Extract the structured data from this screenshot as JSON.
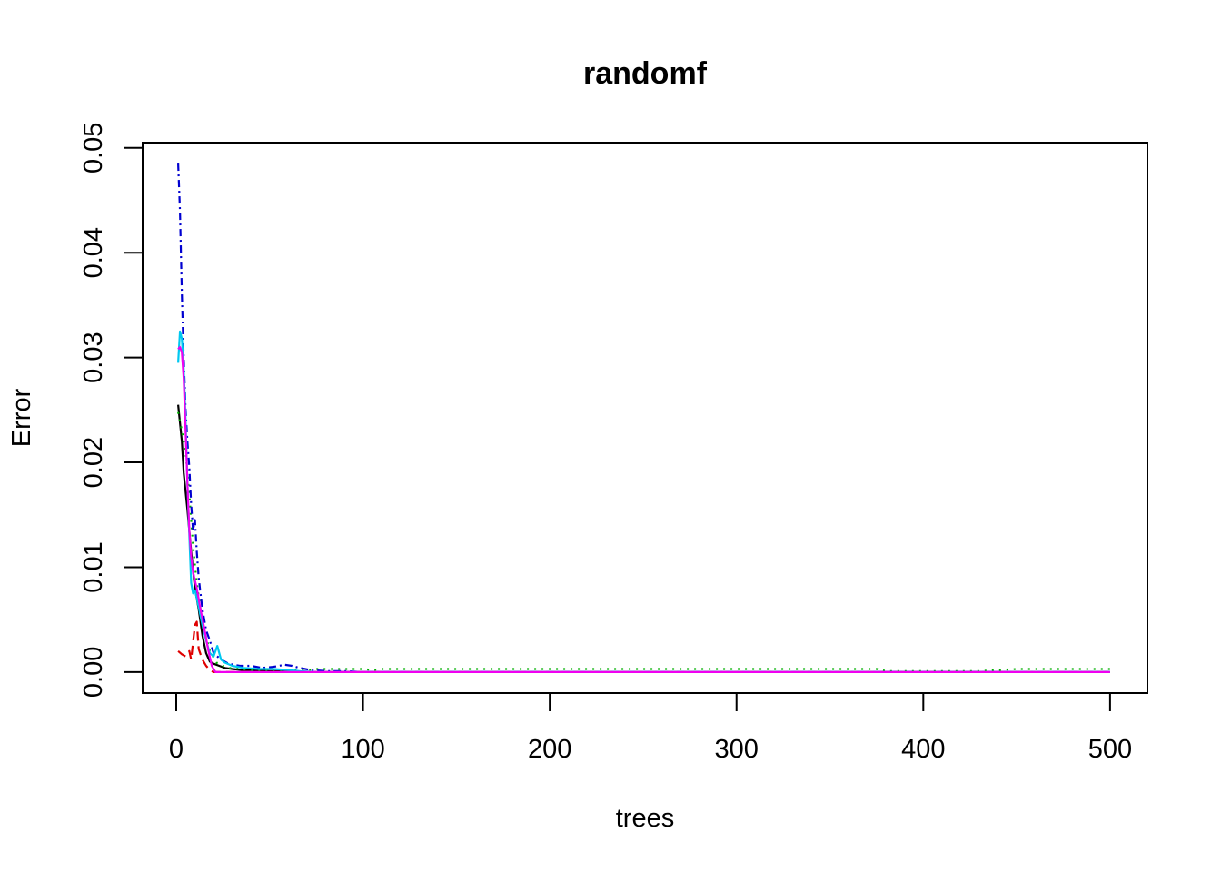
{
  "chart_data": {
    "type": "line",
    "title": "randomf",
    "xlabel": "trees",
    "ylabel": "Error",
    "xlim": [
      -18,
      520
    ],
    "ylim": [
      -0.002,
      0.0505
    ],
    "xticks": [
      "0",
      "100",
      "200",
      "300",
      "400",
      "500"
    ],
    "yticks": [
      "0.00",
      "0.01",
      "0.02",
      "0.03",
      "0.04",
      "0.05"
    ],
    "grid": false,
    "legend": "none",
    "series": [
      {
        "color": "#000000",
        "dash": "",
        "points": [
          [
            1,
            0.0255
          ],
          [
            3,
            0.022
          ],
          [
            4,
            0.019
          ],
          [
            6,
            0.0155
          ],
          [
            8,
            0.0115
          ],
          [
            10,
            0.008
          ],
          [
            12,
            0.006
          ],
          [
            14,
            0.0035
          ],
          [
            16,
            0.0018
          ],
          [
            18,
            0.001
          ],
          [
            20,
            0.0008
          ],
          [
            23,
            0.0006
          ],
          [
            26,
            0.0004
          ],
          [
            30,
            0.0003
          ],
          [
            35,
            0.0002
          ],
          [
            40,
            0.0002
          ],
          [
            50,
            0.0001
          ],
          [
            60,
            0.0001
          ],
          [
            70,
            0.0
          ],
          [
            500,
            0.0
          ]
        ]
      },
      {
        "color": "#df0000",
        "dash": "10,6",
        "points": [
          [
            1,
            0.002
          ],
          [
            3,
            0.0017
          ],
          [
            5,
            0.0015
          ],
          [
            7,
            0.002
          ],
          [
            8,
            0.0012
          ],
          [
            10,
            0.0045
          ],
          [
            11,
            0.0048
          ],
          [
            12,
            0.0022
          ],
          [
            14,
            0.0012
          ],
          [
            16,
            0.0006
          ],
          [
            18,
            0.0002
          ],
          [
            20,
            0.0
          ],
          [
            500,
            0.0
          ]
        ]
      },
      {
        "color": "#00b000",
        "dash": "2,6",
        "points": [
          [
            1,
            0.0248
          ],
          [
            3,
            0.023
          ],
          [
            5,
            0.021
          ],
          [
            7,
            0.017
          ],
          [
            9,
            0.012
          ],
          [
            11,
            0.0085
          ],
          [
            13,
            0.006
          ],
          [
            15,
            0.004
          ],
          [
            18,
            0.002
          ],
          [
            22,
            0.0008
          ],
          [
            28,
            0.0004
          ],
          [
            40,
            0.0002
          ],
          [
            60,
            0.0002
          ],
          [
            70,
            0.0002
          ],
          [
            75,
            0.0003
          ],
          [
            100,
            0.0003
          ],
          [
            105,
            0.0002
          ],
          [
            110,
            0.0003
          ],
          [
            200,
            0.0003
          ],
          [
            300,
            0.0003
          ],
          [
            375,
            0.0003
          ],
          [
            380,
            0.0001
          ],
          [
            430,
            0.0001
          ],
          [
            440,
            0.0002
          ],
          [
            450,
            0.0003
          ],
          [
            500,
            0.0003
          ]
        ]
      },
      {
        "color": "#0000d0",
        "dash": "8,4,2,4",
        "points": [
          [
            1,
            0.0485
          ],
          [
            2,
            0.044
          ],
          [
            3,
            0.036
          ],
          [
            4,
            0.03
          ],
          [
            5,
            0.025
          ],
          [
            6,
            0.022
          ],
          [
            7,
            0.0195
          ],
          [
            8,
            0.016
          ],
          [
            9,
            0.0135
          ],
          [
            10,
            0.0145
          ],
          [
            11,
            0.0115
          ],
          [
            12,
            0.009
          ],
          [
            13,
            0.0075
          ],
          [
            14,
            0.006
          ],
          [
            16,
            0.004
          ],
          [
            18,
            0.003
          ],
          [
            20,
            0.0018
          ],
          [
            24,
            0.0012
          ],
          [
            28,
            0.0008
          ],
          [
            34,
            0.0006
          ],
          [
            40,
            0.0006
          ],
          [
            46,
            0.0004
          ],
          [
            52,
            0.0005
          ],
          [
            58,
            0.0007
          ],
          [
            62,
            0.0006
          ],
          [
            66,
            0.0004
          ],
          [
            72,
            0.0002
          ],
          [
            80,
            0.0001
          ],
          [
            90,
            0.0001
          ],
          [
            100,
            0.0
          ],
          [
            500,
            0.0
          ]
        ]
      },
      {
        "color": "#00c8f0",
        "dash": "",
        "points": [
          [
            1,
            0.0295
          ],
          [
            2,
            0.0325
          ],
          [
            3,
            0.0318
          ],
          [
            4,
            0.029
          ],
          [
            5,
            0.024
          ],
          [
            6,
            0.018
          ],
          [
            7,
            0.013
          ],
          [
            8,
            0.0085
          ],
          [
            9,
            0.0075
          ],
          [
            10,
            0.0078
          ],
          [
            12,
            0.0062
          ],
          [
            14,
            0.0045
          ],
          [
            16,
            0.003
          ],
          [
            18,
            0.0018
          ],
          [
            20,
            0.0015
          ],
          [
            22,
            0.0025
          ],
          [
            24,
            0.0012
          ],
          [
            26,
            0.0009
          ],
          [
            30,
            0.0006
          ],
          [
            36,
            0.0004
          ],
          [
            44,
            0.0003
          ],
          [
            52,
            0.0003
          ],
          [
            60,
            0.0002
          ],
          [
            66,
            0.0001
          ],
          [
            75,
            0.0
          ],
          [
            500,
            0.0
          ]
        ]
      },
      {
        "color": "#f000f0",
        "dash": "",
        "points": [
          [
            1,
            0.0308
          ],
          [
            2,
            0.031
          ],
          [
            3,
            0.0305
          ],
          [
            4,
            0.028
          ],
          [
            5,
            0.023
          ],
          [
            6,
            0.018
          ],
          [
            7,
            0.0135
          ],
          [
            8,
            0.011
          ],
          [
            9,
            0.0095
          ],
          [
            11,
            0.008
          ],
          [
            13,
            0.006
          ],
          [
            15,
            0.0042
          ],
          [
            17,
            0.0022
          ],
          [
            19,
            0.0006
          ],
          [
            21,
            0.0
          ],
          [
            500,
            0.0
          ]
        ]
      }
    ]
  }
}
